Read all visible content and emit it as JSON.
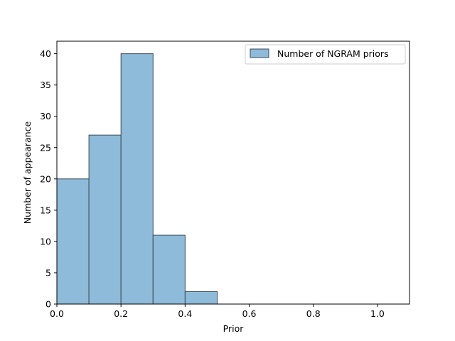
{
  "chart_data": {
    "type": "bar",
    "title": "",
    "xlabel": "Prior",
    "ylabel": "Number of appearance",
    "xlim": [
      0,
      1.1
    ],
    "ylim": [
      0,
      42
    ],
    "grid": false,
    "legend_position": "top-right",
    "bar_color": "#8fbbda",
    "bar_edge_color": "#3a4a55",
    "bin_edges": [
      0.0,
      0.1,
      0.2,
      0.3,
      0.4,
      0.5
    ],
    "series": [
      {
        "name": "Number of NGRAM priors",
        "values": [
          20,
          27,
          40,
          11,
          2
        ]
      }
    ],
    "x_ticks": [
      0.0,
      0.2,
      0.4,
      0.6,
      0.8,
      1.0
    ],
    "x_tick_labels": [
      "0.0",
      "0.2",
      "0.4",
      "0.6",
      "0.8",
      "1.0"
    ],
    "y_ticks": [
      0,
      5,
      10,
      15,
      20,
      25,
      30,
      35,
      40
    ],
    "y_tick_labels": [
      "0",
      "5",
      "10",
      "15",
      "20",
      "25",
      "30",
      "35",
      "40"
    ]
  }
}
